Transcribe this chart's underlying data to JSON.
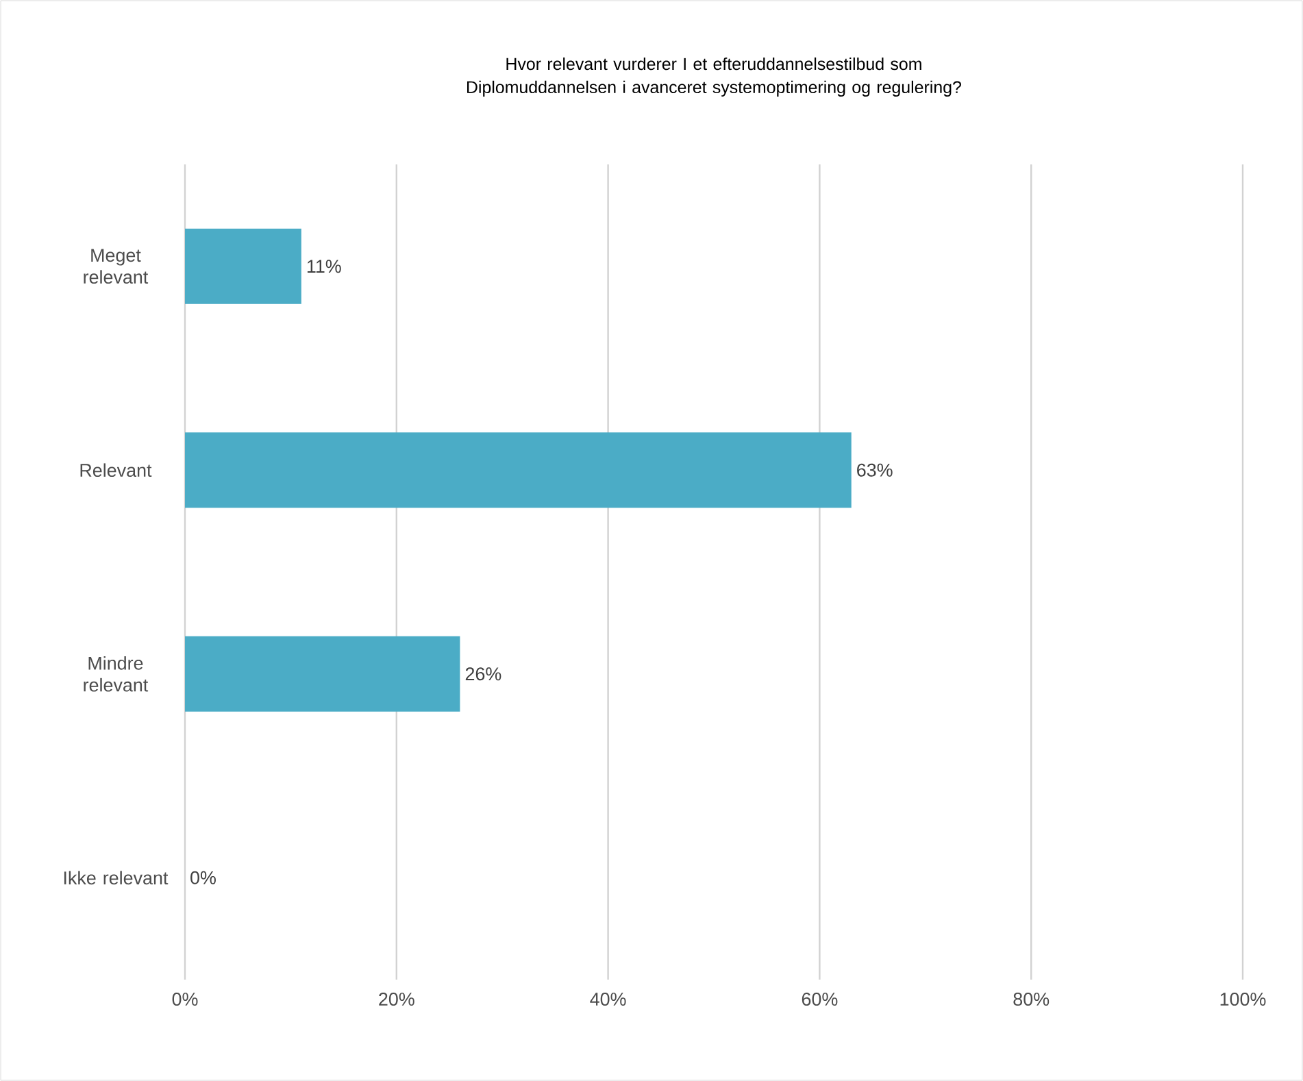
{
  "chart_data": {
    "type": "bar",
    "orientation": "horizontal",
    "title": "Hvor relevant vurderer I et efteruddannelsestilbud som Diplomuddannelsen i avanceret systemoptimering og regulering?",
    "categories": [
      "Meget relevant",
      "Relevant",
      "Mindre relevant",
      "Ikke relevant"
    ],
    "values": [
      11,
      63,
      26,
      0
    ],
    "value_labels": [
      "11%",
      "63%",
      "26%",
      "0%"
    ],
    "color": "#4bacc6",
    "xlim": [
      0,
      100
    ],
    "xticks": [
      {
        "value": 0,
        "label": "0%"
      },
      {
        "value": 20,
        "label": "20%"
      },
      {
        "value": 40,
        "label": "40%"
      },
      {
        "value": 60,
        "label": "60%"
      },
      {
        "value": 80,
        "label": "80%"
      },
      {
        "value": 100,
        "label": "100%"
      }
    ],
    "grid": "x"
  }
}
